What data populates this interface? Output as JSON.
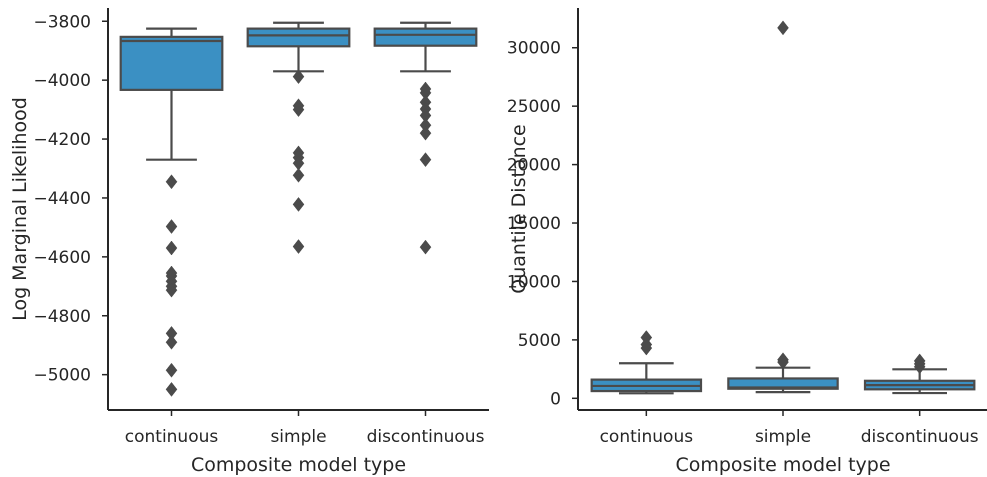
{
  "chart_data": [
    {
      "type": "box",
      "xlabel": "Composite model type",
      "ylabel": "Log Marginal Likelihood",
      "ylim": [
        -5120,
        -3755
      ],
      "yticks": [
        -3800,
        -4000,
        -4200,
        -4400,
        -4600,
        -4800,
        -5000
      ],
      "ytick_labels": [
        "−3800",
        "−4000",
        "−4200",
        "−4400",
        "−4600",
        "−4800",
        "−5000"
      ],
      "categories": [
        "continuous",
        "simple",
        "discontinuous"
      ],
      "boxes": [
        {
          "category": "continuous",
          "whisker_low": -4270,
          "q1": -4033,
          "median": -3867,
          "q3": -3853,
          "whisker_high": -3825,
          "outliers": [
            -4345,
            -4497,
            -4570,
            -4655,
            -4665,
            -4683,
            -4700,
            -4713,
            -4860,
            -4890,
            -4985,
            -5050
          ]
        },
        {
          "category": "simple",
          "whisker_low": -3970,
          "q1": -3885,
          "median": -3848,
          "q3": -3825,
          "whisker_high": -3805,
          "outliers": [
            -3988,
            -4087,
            -4100,
            -4247,
            -4263,
            -4282,
            -4323,
            -4422,
            -4565
          ]
        },
        {
          "category": "discontinuous",
          "whisker_low": -3970,
          "q1": -3883,
          "median": -3846,
          "q3": -3825,
          "whisker_high": -3805,
          "outliers": [
            -4030,
            -4043,
            -4075,
            -4098,
            -4120,
            -4153,
            -4180,
            -4270,
            -4567
          ]
        }
      ],
      "box_color": "#3b90c3",
      "line_color": "#4b4b4b",
      "grid": false
    },
    {
      "type": "box",
      "xlabel": "Composite model type",
      "ylabel": "Quantile Distance",
      "ylim": [
        -1000,
        33400
      ],
      "yticks": [
        0,
        5000,
        10000,
        15000,
        20000,
        25000,
        30000
      ],
      "ytick_labels": [
        "0",
        "5000",
        "10000",
        "15000",
        "20000",
        "25000",
        "30000"
      ],
      "categories": [
        "continuous",
        "simple",
        "discontinuous"
      ],
      "boxes": [
        {
          "category": "continuous",
          "whisker_low": 430,
          "q1": 620,
          "median": 1060,
          "q3": 1600,
          "whisker_high": 3000,
          "outliers": [
            4300,
            4600,
            5200
          ]
        },
        {
          "category": "simple",
          "whisker_low": 530,
          "q1": 820,
          "median": 930,
          "q3": 1700,
          "whisker_high": 2620,
          "outliers": [
            3100,
            3300,
            31700
          ]
        },
        {
          "category": "discontinuous",
          "whisker_low": 450,
          "q1": 770,
          "median": 1130,
          "q3": 1500,
          "whisker_high": 2480,
          "outliers": [
            2700,
            2950,
            3200
          ]
        }
      ],
      "box_color": "#3b90c3",
      "line_color": "#4b4b4b",
      "grid": false
    }
  ]
}
